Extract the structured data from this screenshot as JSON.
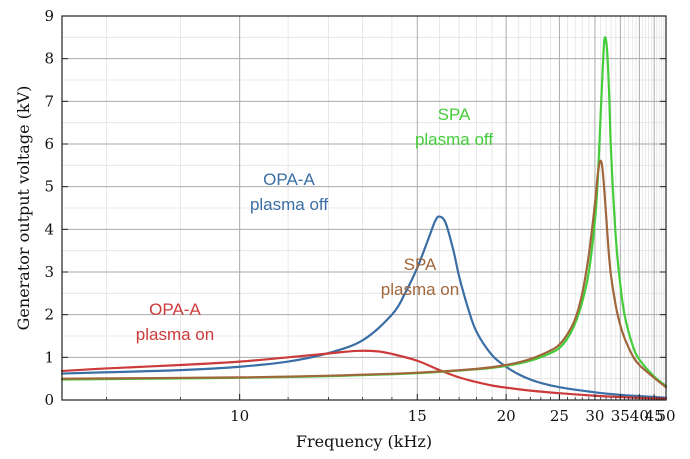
{
  "chart_data": {
    "type": "line",
    "xlabel": "Frequency (kHz)",
    "ylabel": "Generator output voltage (kV)",
    "x_scale": "reciprocal",
    "xlim": [
      7.5,
      50
    ],
    "ylim": [
      0,
      9
    ],
    "x_tick_labels": [
      "10",
      "15",
      "20",
      "25",
      "30",
      "35",
      "40",
      "45",
      "50"
    ],
    "y_tick_labels": [
      "0",
      "1",
      "2",
      "3",
      "4",
      "5",
      "6",
      "7",
      "8",
      "9"
    ],
    "grid": true,
    "series": [
      {
        "label": [
          "OPA-A",
          "plasma off"
        ],
        "color": "#3a6ea5",
        "points": [
          [
            7.5,
            0.62
          ],
          [
            8,
            0.65
          ],
          [
            9,
            0.7
          ],
          [
            10,
            0.78
          ],
          [
            11,
            0.9
          ],
          [
            12,
            1.1
          ],
          [
            13,
            1.4
          ],
          [
            14,
            2.0
          ],
          [
            14.5,
            2.5
          ],
          [
            15,
            3.1
          ],
          [
            15.5,
            3.8
          ],
          [
            15.8,
            4.2
          ],
          [
            16,
            4.3
          ],
          [
            16.3,
            4.15
          ],
          [
            16.7,
            3.5
          ],
          [
            17,
            2.9
          ],
          [
            17.5,
            2.15
          ],
          [
            18,
            1.6
          ],
          [
            19,
            1.05
          ],
          [
            20,
            0.78
          ],
          [
            21,
            0.6
          ],
          [
            22,
            0.48
          ],
          [
            23,
            0.4
          ],
          [
            25,
            0.3
          ],
          [
            30,
            0.18
          ],
          [
            35,
            0.12
          ],
          [
            40,
            0.09
          ],
          [
            45,
            0.07
          ],
          [
            50,
            0.05
          ]
        ]
      },
      {
        "label": [
          "OPA-A",
          "plasma on"
        ],
        "color": "#cc3b3b",
        "points": [
          [
            7.5,
            0.68
          ],
          [
            8,
            0.74
          ],
          [
            9,
            0.82
          ],
          [
            10,
            0.9
          ],
          [
            11,
            1.0
          ],
          [
            12,
            1.09
          ],
          [
            12.8,
            1.15
          ],
          [
            13.5,
            1.14
          ],
          [
            14,
            1.08
          ],
          [
            15,
            0.92
          ],
          [
            16,
            0.7
          ],
          [
            17,
            0.53
          ],
          [
            18,
            0.42
          ],
          [
            19,
            0.34
          ],
          [
            20,
            0.29
          ],
          [
            22,
            0.22
          ],
          [
            25,
            0.16
          ],
          [
            30,
            0.1
          ],
          [
            35,
            0.07
          ],
          [
            40,
            0.05
          ],
          [
            45,
            0.04
          ],
          [
            50,
            0.03
          ]
        ]
      },
      {
        "label": [
          "SPA",
          "plasma off"
        ],
        "color": "#44cc3a",
        "points": [
          [
            7.5,
            0.48
          ],
          [
            10,
            0.52
          ],
          [
            12,
            0.56
          ],
          [
            15,
            0.63
          ],
          [
            18,
            0.72
          ],
          [
            20,
            0.8
          ],
          [
            22,
            0.92
          ],
          [
            24,
            1.1
          ],
          [
            25,
            1.22
          ],
          [
            26,
            1.45
          ],
          [
            27,
            1.8
          ],
          [
            28,
            2.3
          ],
          [
            29,
            3.0
          ],
          [
            30,
            4.2
          ],
          [
            30.5,
            5.2
          ],
          [
            31,
            6.7
          ],
          [
            31.5,
            8.1
          ],
          [
            31.8,
            8.5
          ],
          [
            32.2,
            8.2
          ],
          [
            32.6,
            7.2
          ],
          [
            33,
            5.8
          ],
          [
            34,
            3.8
          ],
          [
            35,
            2.7
          ],
          [
            36,
            2.0
          ],
          [
            38,
            1.3
          ],
          [
            40,
            0.95
          ],
          [
            45,
            0.55
          ],
          [
            50,
            0.33
          ]
        ]
      },
      {
        "label": [
          "SPA",
          "plasma on"
        ],
        "color": "#a0663c",
        "points": [
          [
            7.5,
            0.5
          ],
          [
            10,
            0.53
          ],
          [
            12,
            0.57
          ],
          [
            15,
            0.64
          ],
          [
            18,
            0.73
          ],
          [
            20,
            0.82
          ],
          [
            22,
            0.96
          ],
          [
            24,
            1.16
          ],
          [
            25,
            1.3
          ],
          [
            26,
            1.55
          ],
          [
            27,
            1.9
          ],
          [
            28,
            2.5
          ],
          [
            29,
            3.4
          ],
          [
            30,
            4.6
          ],
          [
            30.5,
            5.3
          ],
          [
            30.9,
            5.6
          ],
          [
            31.3,
            5.45
          ],
          [
            31.8,
            4.7
          ],
          [
            32.5,
            3.5
          ],
          [
            33,
            2.9
          ],
          [
            34,
            2.2
          ],
          [
            35,
            1.75
          ],
          [
            36,
            1.45
          ],
          [
            38,
            1.05
          ],
          [
            40,
            0.82
          ],
          [
            45,
            0.52
          ],
          [
            50,
            0.3
          ]
        ]
      }
    ]
  }
}
